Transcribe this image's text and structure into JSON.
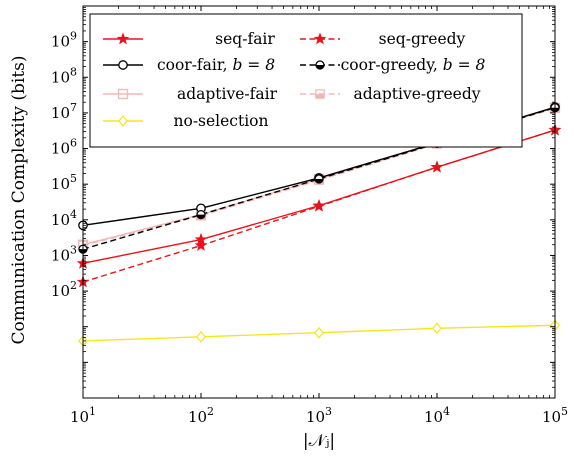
{
  "chart_data": {
    "type": "line",
    "xscale": "log",
    "yscale": "log",
    "xlabel": "|𝒩ⱼ|",
    "ylabel": "Communication Complexity (bits)",
    "xlim": [
      10,
      100000
    ],
    "ylim": [
      0.1,
      10000000000
    ],
    "x_ticks": [
      10,
      100,
      1000,
      10000,
      100000
    ],
    "x_tick_labels": [
      {
        "base": "10",
        "exp": "1"
      },
      {
        "base": "10",
        "exp": "2"
      },
      {
        "base": "10",
        "exp": "3"
      },
      {
        "base": "10",
        "exp": "4"
      },
      {
        "base": "10",
        "exp": "5"
      }
    ],
    "y_ticks": [
      100,
      1000,
      10000,
      100000,
      1000000,
      10000000,
      100000000,
      1000000000
    ],
    "y_tick_labels": [
      {
        "base": "10",
        "exp": "2"
      },
      {
        "base": "10",
        "exp": "3"
      },
      {
        "base": "10",
        "exp": "4"
      },
      {
        "base": "10",
        "exp": "5"
      },
      {
        "base": "10",
        "exp": "6"
      },
      {
        "base": "10",
        "exp": "7"
      },
      {
        "base": "10",
        "exp": "8"
      },
      {
        "base": "10",
        "exp": "9"
      }
    ],
    "grid": false,
    "legend_position": "top",
    "x": [
      10,
      100,
      1000,
      10000,
      100000
    ],
    "series": [
      {
        "name": "seq-fair",
        "label_text": "seq-fair",
        "color": "#e8141c",
        "dash": "solid",
        "marker": "star",
        "values": [
          600,
          2800,
          25000,
          300000,
          3300000
        ]
      },
      {
        "name": "seq-greedy",
        "label_text": "seq-greedy",
        "color": "#e8141c",
        "dash": "dashed",
        "marker": "star",
        "values": [
          180,
          1900,
          24000,
          300000,
          3300000
        ]
      },
      {
        "name": "coor-fair, b = 8",
        "label_text": "coor-fair, ",
        "label_math": "b = 8",
        "color": "#000000",
        "dash": "solid",
        "marker": "circle",
        "values": [
          7000,
          21000,
          150000,
          1450000,
          14500000
        ]
      },
      {
        "name": "coor-greedy, b = 8",
        "label_text": "coor-greedy, ",
        "label_math": "b = 8",
        "color": "#000000",
        "dash": "dashed",
        "marker": "half-circle",
        "values": [
          1500,
          14000,
          140000,
          1400000,
          14000000
        ]
      },
      {
        "name": "adaptive-fair",
        "label_text": "adaptive-fair",
        "color": "#f2b8b8",
        "dash": "solid",
        "marker": "square",
        "values": [
          2000,
          14000,
          140000,
          1400000,
          14000000
        ]
      },
      {
        "name": "adaptive-greedy",
        "label_text": "adaptive-greedy",
        "color": "#f2b8b8",
        "dash": "dashed",
        "marker": "half-square",
        "values": [
          1900,
          13000,
          130000,
          1350000,
          13500000
        ]
      },
      {
        "name": "no-selection",
        "label_text": "no-selection",
        "color": "#f5e61c",
        "dash": "solid",
        "marker": "diamond",
        "values": [
          4,
          5.2,
          6.8,
          9,
          11
        ]
      }
    ]
  }
}
